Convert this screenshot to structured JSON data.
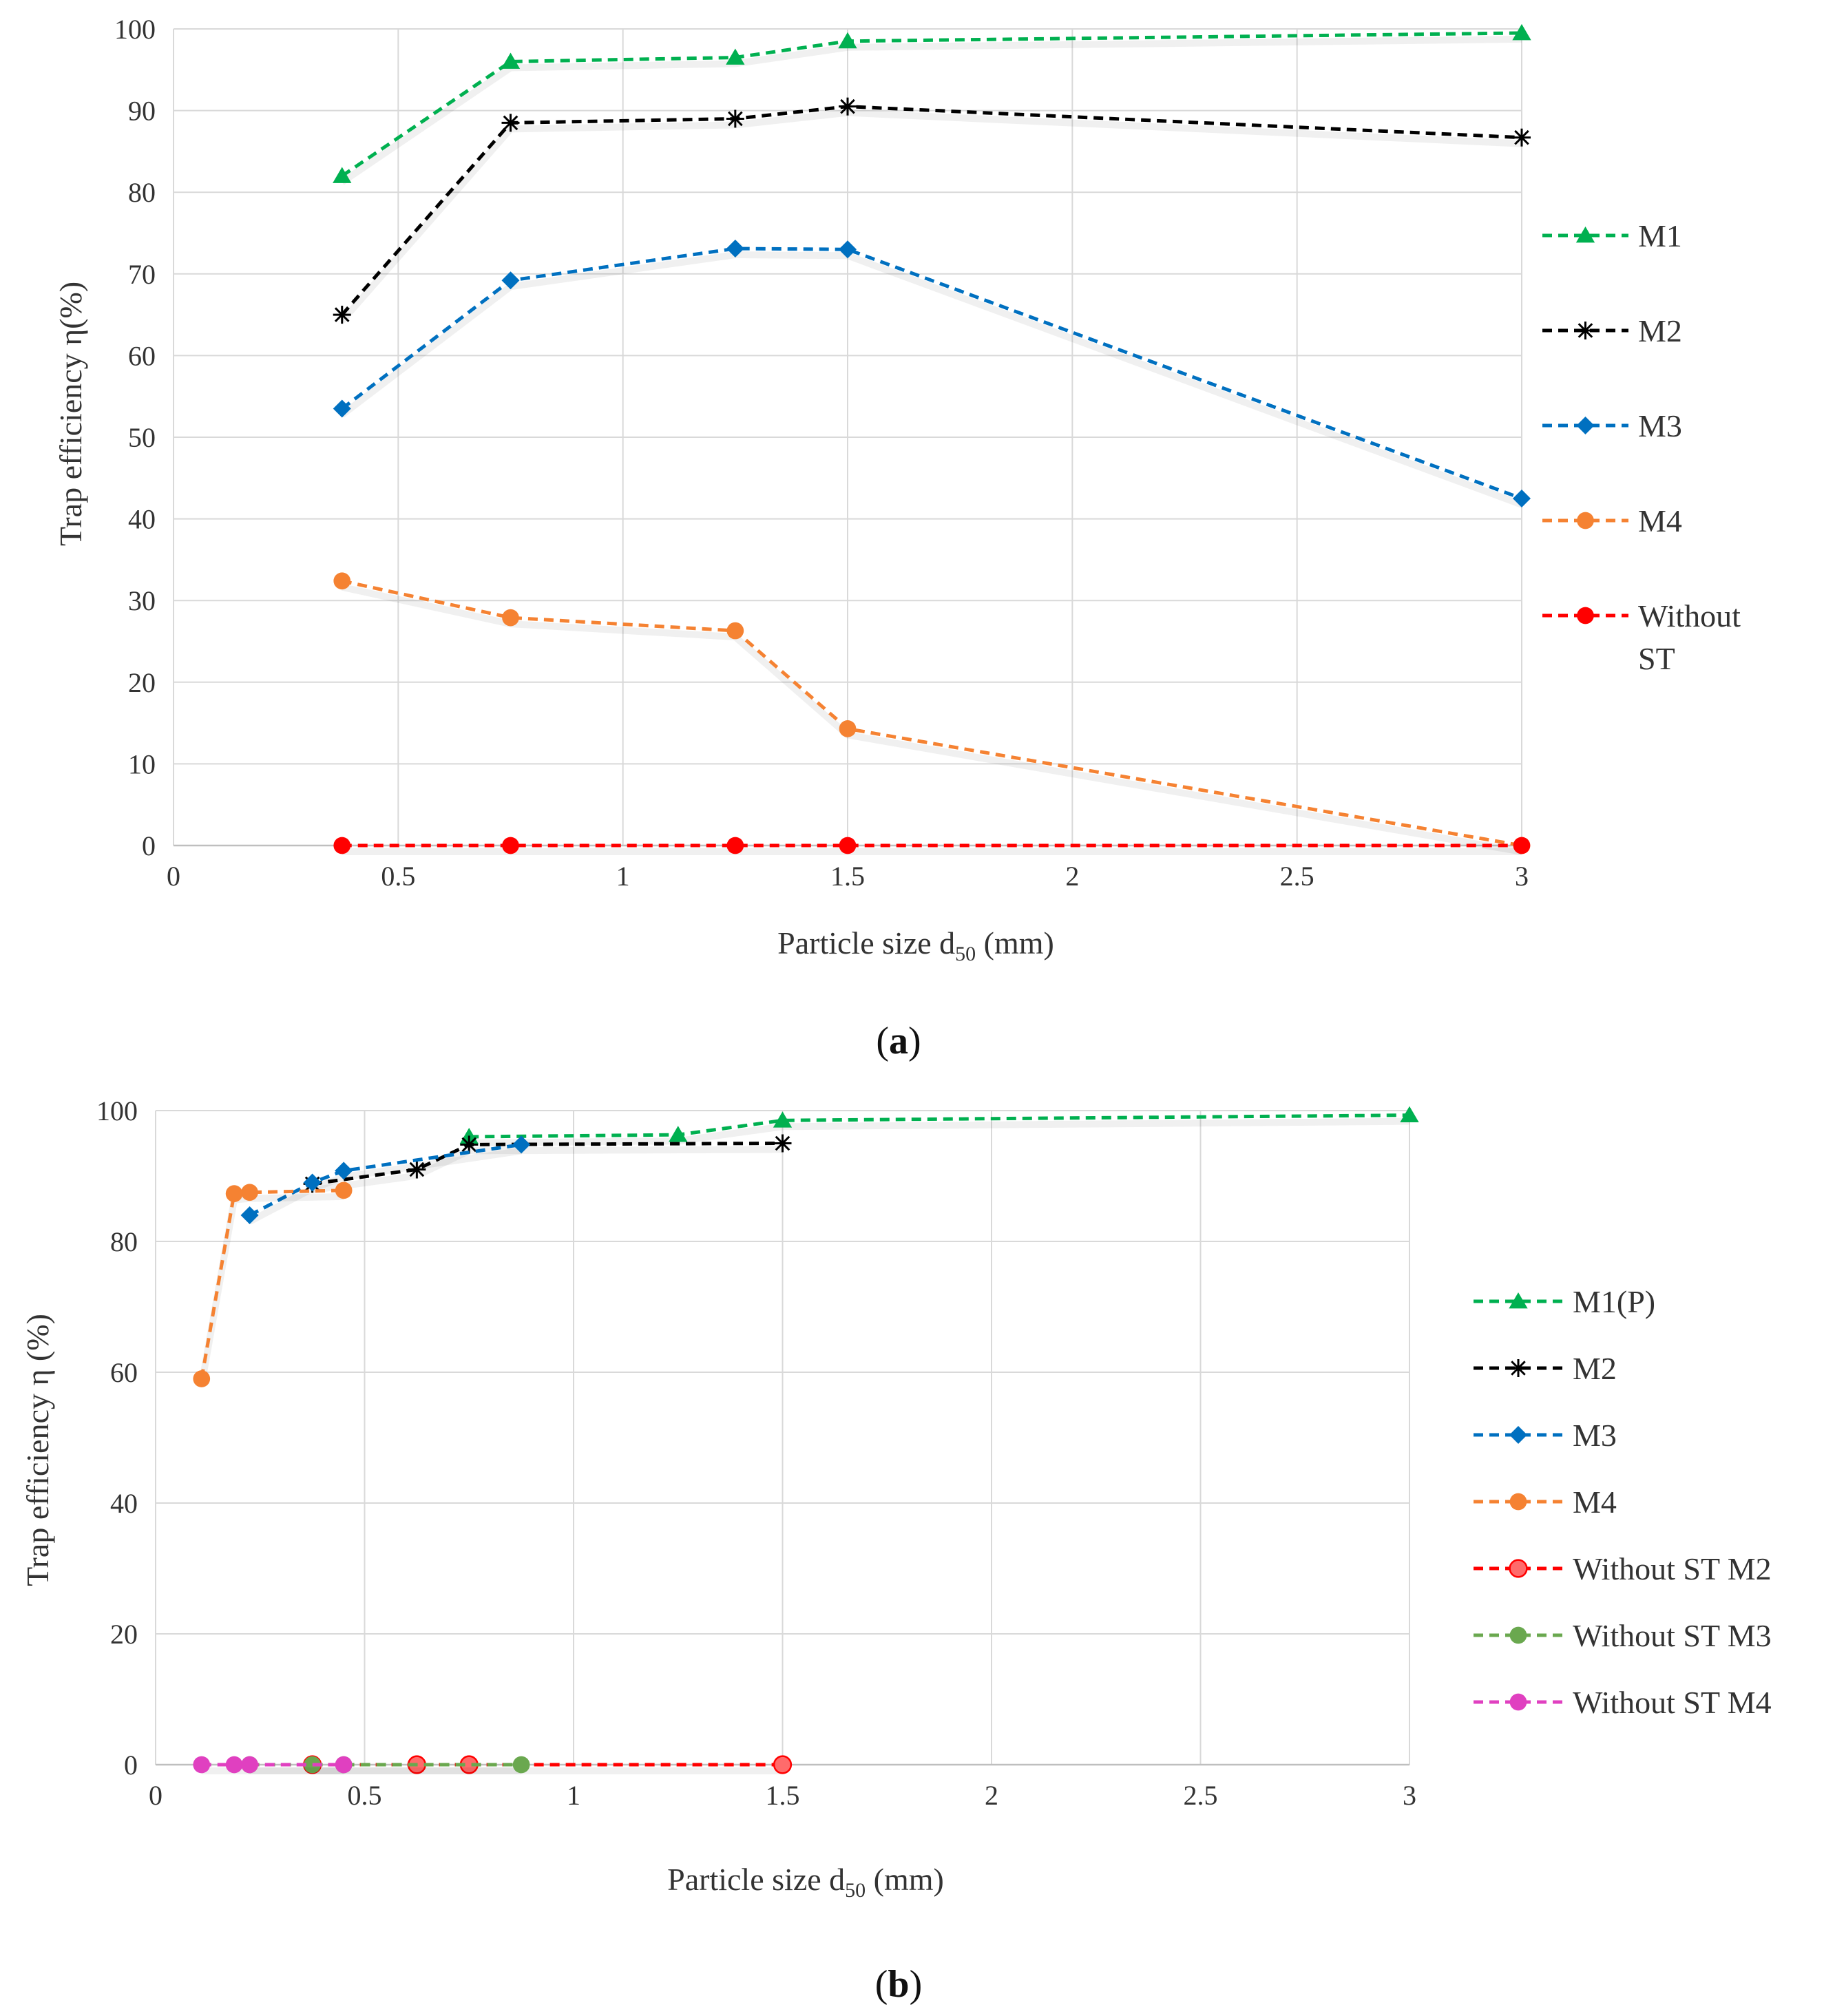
{
  "chart_data": [
    {
      "type": "line",
      "panel_label": "a",
      "xlabel_main": "Particle size d",
      "xlabel_sub": "50",
      "xlabel_unit": " (mm)",
      "ylabel": "Trap efficiency η(%)",
      "xlim": [
        0,
        3
      ],
      "ylim": [
        0,
        100
      ],
      "xticks": [
        "0",
        "0.5",
        "1",
        "1.5",
        "2",
        "2.5",
        "3"
      ],
      "yticks": [
        "0",
        "10",
        "20",
        "30",
        "40",
        "50",
        "60",
        "70",
        "80",
        "90",
        "100"
      ],
      "grid": true,
      "legend_position": "right",
      "series": [
        {
          "name": "M1",
          "color": "#00b050",
          "marker": "triangle",
          "x": [
            0.375,
            0.75,
            1.25,
            1.5,
            3
          ],
          "y": [
            82,
            96,
            96.5,
            98.5,
            99.5
          ]
        },
        {
          "name": "M2",
          "color": "#000000",
          "marker": "star",
          "x": [
            0.375,
            0.75,
            1.25,
            1.5,
            3
          ],
          "y": [
            65,
            88.5,
            89,
            90.5,
            86.7
          ]
        },
        {
          "name": "M3",
          "color": "#0070c0",
          "marker": "diamond",
          "x": [
            0.375,
            0.75,
            1.25,
            1.5,
            3
          ],
          "y": [
            53.5,
            69.2,
            73.1,
            73,
            42.5
          ]
        },
        {
          "name": "M4",
          "color": "#f58232",
          "marker": "circle",
          "x": [
            0.375,
            0.75,
            1.25,
            1.5,
            3
          ],
          "y": [
            32.4,
            27.9,
            26.3,
            14.3,
            0
          ]
        },
        {
          "name": "Without ST",
          "color": "#ff0000",
          "marker": "circle",
          "x": [
            0.375,
            0.75,
            1.25,
            1.5,
            3
          ],
          "y": [
            0,
            0,
            0,
            0,
            0
          ]
        }
      ]
    },
    {
      "type": "line",
      "panel_label": "b",
      "xlabel_main": "Particle size d",
      "xlabel_sub": "50",
      "xlabel_unit": " (mm)",
      "ylabel": "Trap efficiency η (%)",
      "xlim": [
        0,
        3
      ],
      "ylim": [
        0,
        100
      ],
      "xticks": [
        "0",
        "0.5",
        "1",
        "1.5",
        "2",
        "2.5",
        "3"
      ],
      "yticks": [
        "0",
        "20",
        "40",
        "60",
        "80",
        "100"
      ],
      "grid": true,
      "legend_position": "right",
      "series": [
        {
          "name": "M1(P)",
          "color": "#00b050",
          "marker": "triangle",
          "x": [
            0.75,
            1.25,
            1.5,
            3
          ],
          "y": [
            96,
            96.3,
            98.5,
            99.3
          ]
        },
        {
          "name": "M2",
          "color": "#000000",
          "marker": "star",
          "x": [
            0.375,
            0.625,
            0.75,
            1.5
          ],
          "y": [
            88.8,
            91,
            94.8,
            95
          ]
        },
        {
          "name": "M3",
          "color": "#0070c0",
          "marker": "diamond",
          "x": [
            0.225,
            0.375,
            0.45,
            0.875
          ],
          "y": [
            84,
            89,
            90.8,
            94.8
          ]
        },
        {
          "name": "M4",
          "color": "#f58232",
          "marker": "circle",
          "x": [
            0.11,
            0.188,
            0.225,
            0.45
          ],
          "y": [
            59,
            87.3,
            87.5,
            87.8
          ]
        },
        {
          "name": "Without ST M2",
          "color": "#ff0000",
          "marker": "circle-light",
          "x": [
            0.375,
            0.625,
            0.75,
            1.5
          ],
          "y": [
            0,
            0,
            0,
            0
          ]
        },
        {
          "name": "Without ST M3",
          "color": "#6aa84f",
          "marker": "circle",
          "x": [
            0.225,
            0.375,
            0.45,
            0.875
          ],
          "y": [
            0,
            0,
            0,
            0
          ]
        },
        {
          "name": "Without ST M4",
          "color": "#e040c0",
          "marker": "circle",
          "x": [
            0.11,
            0.188,
            0.225,
            0.45
          ],
          "y": [
            0,
            0,
            0,
            0
          ]
        }
      ]
    }
  ]
}
